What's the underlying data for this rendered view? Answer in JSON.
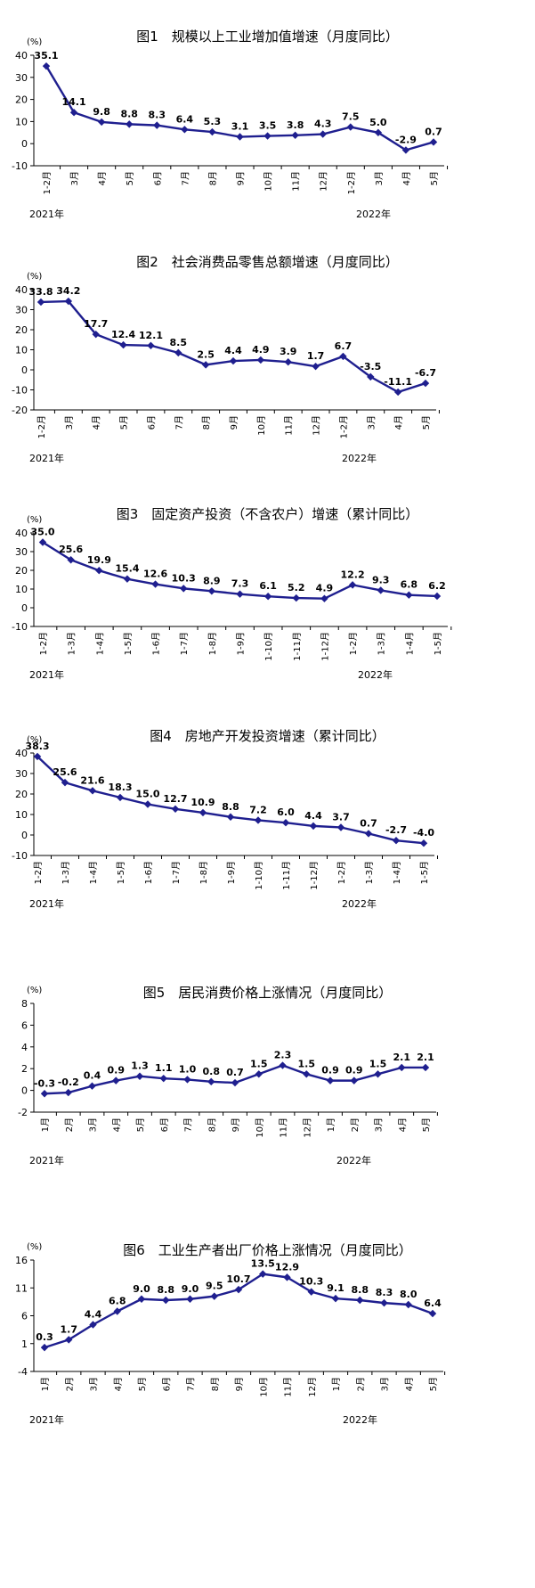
{
  "colors": {
    "series": "#1f1f8f",
    "axis": "#000000"
  },
  "chart_data": [
    {
      "type": "line",
      "title": "图1　规模以上工业增加值增速（月度同比）",
      "unit": "(%)",
      "ylim": [
        -10,
        40
      ],
      "yticks": [
        -10,
        0,
        10,
        20,
        30,
        40
      ],
      "categories": [
        "1-2月",
        "3月",
        "4月",
        "5月",
        "6月",
        "7月",
        "8月",
        "9月",
        "10月",
        "11月",
        "12月",
        "1-2月",
        "3月",
        "4月",
        "5月"
      ],
      "values": [
        35.1,
        14.1,
        9.8,
        8.8,
        8.3,
        6.4,
        5.3,
        3.1,
        3.5,
        3.8,
        4.3,
        7.5,
        5.0,
        -2.9,
        0.7
      ],
      "labels": [
        "35.1",
        "14.1",
        "9.8",
        "8.8",
        "8.3",
        "6.4",
        "5.3",
        "3.1",
        "3.5",
        "3.8",
        "4.3",
        "7.5",
        "5.0",
        "-2.9",
        "0.7"
      ],
      "year_labels": [
        "2021年",
        "2022年"
      ]
    },
    {
      "type": "line",
      "title": "图2　社会消费品零售总额增速（月度同比）",
      "unit": "(%)",
      "ylim": [
        -20,
        40
      ],
      "yticks": [
        -20,
        -10,
        0,
        10,
        20,
        30,
        40
      ],
      "categories": [
        "1-2月",
        "3月",
        "4月",
        "5月",
        "6月",
        "7月",
        "8月",
        "9月",
        "10月",
        "11月",
        "12月",
        "1-2月",
        "3月",
        "4月",
        "5月"
      ],
      "values": [
        33.8,
        34.2,
        17.7,
        12.4,
        12.1,
        8.5,
        2.5,
        4.4,
        4.9,
        3.9,
        1.7,
        6.7,
        -3.5,
        -11.1,
        -6.7
      ],
      "labels": [
        "33.8",
        "34.2",
        "17.7",
        "12.4",
        "12.1",
        "8.5",
        "2.5",
        "4.4",
        "4.9",
        "3.9",
        "1.7",
        "6.7",
        "-3.5",
        "-11.1",
        "-6.7"
      ],
      "year_labels": [
        "2021年",
        "2022年"
      ]
    },
    {
      "type": "line",
      "title": "图3　固定资产投资（不含农户）增速（累计同比）",
      "unit": "(%)",
      "ylim": [
        -10,
        40
      ],
      "yticks": [
        -10,
        0,
        10,
        20,
        30,
        40
      ],
      "categories": [
        "1-2月",
        "1-3月",
        "1-4月",
        "1-5月",
        "1-6月",
        "1-7月",
        "1-8月",
        "1-9月",
        "1-10月",
        "1-11月",
        "1-12月",
        "1-2月",
        "1-3月",
        "1-4月",
        "1-5月"
      ],
      "values": [
        35.0,
        25.6,
        19.9,
        15.4,
        12.6,
        10.3,
        8.9,
        7.3,
        6.1,
        5.2,
        4.9,
        12.2,
        9.3,
        6.8,
        6.2
      ],
      "labels": [
        "35.0",
        "25.6",
        "19.9",
        "15.4",
        "12.6",
        "10.3",
        "8.9",
        "7.3",
        "6.1",
        "5.2",
        "4.9",
        "12.2",
        "9.3",
        "6.8",
        "6.2"
      ],
      "year_labels": [
        "2021年",
        "2022年"
      ]
    },
    {
      "type": "line",
      "title": "图4　房地产开发投资增速（累计同比）",
      "unit": "(%)",
      "ylim": [
        -10,
        40
      ],
      "yticks": [
        -10,
        0,
        10,
        20,
        30,
        40
      ],
      "categories": [
        "1-2月",
        "1-3月",
        "1-4月",
        "1-5月",
        "1-6月",
        "1-7月",
        "1-8月",
        "1-9月",
        "1-10月",
        "1-11月",
        "1-12月",
        "1-2月",
        "1-3月",
        "1-4月",
        "1-5月"
      ],
      "values": [
        38.3,
        25.6,
        21.6,
        18.3,
        15.0,
        12.7,
        10.9,
        8.8,
        7.2,
        6.0,
        4.4,
        3.7,
        0.7,
        -2.7,
        -4.0
      ],
      "labels": [
        "38.3",
        "25.6",
        "21.6",
        "18.3",
        "15.0",
        "12.7",
        "10.9",
        "8.8",
        "7.2",
        "6.0",
        "4.4",
        "3.7",
        "0.7",
        "-2.7",
        "-4.0"
      ],
      "year_labels": [
        "2021年",
        "2022年"
      ]
    },
    {
      "type": "line",
      "title": "图5　居民消费价格上涨情况（月度同比）",
      "unit": "(%)",
      "ylim": [
        -2,
        8
      ],
      "yticks": [
        -2,
        0,
        2,
        4,
        6,
        8
      ],
      "categories": [
        "1月",
        "2月",
        "3月",
        "4月",
        "5月",
        "6月",
        "7月",
        "8月",
        "9月",
        "10月",
        "11月",
        "12月",
        "1月",
        "2月",
        "3月",
        "4月",
        "5月"
      ],
      "values": [
        -0.3,
        -0.2,
        0.4,
        0.9,
        1.3,
        1.1,
        1.0,
        0.8,
        0.7,
        1.5,
        2.3,
        1.5,
        0.9,
        0.9,
        1.5,
        2.1,
        2.1
      ],
      "labels": [
        "-0.3",
        "-0.2",
        "0.4",
        "0.9",
        "1.3",
        "1.1",
        "1.0",
        "0.8",
        "0.7",
        "1.5",
        "2.3",
        "1.5",
        "0.9",
        "0.9",
        "1.5",
        "2.1",
        "2.1"
      ],
      "year_labels": [
        "2021年",
        "2022年"
      ]
    },
    {
      "type": "line",
      "title": "图6　工业生产者出厂价格上涨情况（月度同比）",
      "unit": "(%)",
      "ylim": [
        -4,
        16
      ],
      "yticks": [
        -4,
        1,
        6,
        11,
        16
      ],
      "categories": [
        "1月",
        "2月",
        "3月",
        "4月",
        "5月",
        "6月",
        "7月",
        "8月",
        "9月",
        "10月",
        "11月",
        "12月",
        "1月",
        "2月",
        "3月",
        "4月",
        "5月"
      ],
      "values": [
        0.3,
        1.7,
        4.4,
        6.8,
        9.0,
        8.8,
        9.0,
        9.5,
        10.7,
        13.5,
        12.9,
        10.3,
        9.1,
        8.8,
        8.3,
        8.0,
        6.4
      ],
      "labels": [
        "0.3",
        "1.7",
        "4.4",
        "6.8",
        "9.0",
        "8.8",
        "9.0",
        "9.5",
        "10.7",
        "13.5",
        "12.9",
        "10.3",
        "9.1",
        "8.8",
        "8.3",
        "8.0",
        "6.4"
      ],
      "year_labels": [
        "2021年",
        "2022年"
      ]
    }
  ]
}
